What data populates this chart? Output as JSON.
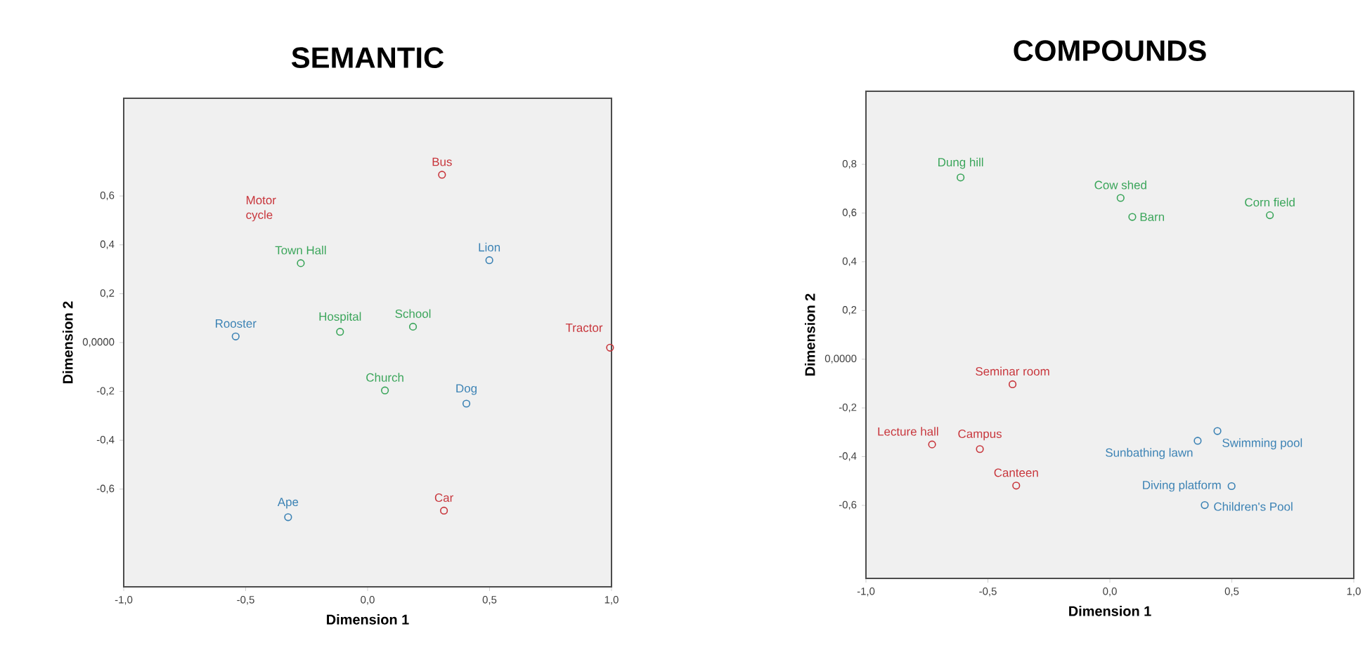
{
  "chart_data": [
    {
      "type": "scatter",
      "title": "SEMANTIC",
      "xlabel": "Dimension 1",
      "ylabel": "Dimension 2",
      "marker": "circle",
      "grid": false,
      "legend": false,
      "xlim": [
        -1,
        1
      ],
      "ylim": [
        -1,
        1
      ],
      "xticks": [
        {
          "value": -1,
          "label": "-1,0"
        },
        {
          "value": -0.5,
          "label": "-0,5"
        },
        {
          "value": 0,
          "label": "0,0"
        },
        {
          "value": 0.5,
          "label": "0,5"
        },
        {
          "value": 1,
          "label": "1,0"
        }
      ],
      "yticks": [
        {
          "value": -0.6,
          "label": "-0,6"
        },
        {
          "value": -0.4,
          "label": "-0,4"
        },
        {
          "value": -0.2,
          "label": "-0,2"
        },
        {
          "value": 0,
          "label": "0,0000"
        },
        {
          "value": 0.2,
          "label": "0,2"
        },
        {
          "value": 0.4,
          "label": "0,4"
        },
        {
          "value": 0.6,
          "label": "0,6"
        }
      ],
      "annotations": [
        "Motor cycle"
      ],
      "series": [
        {
          "name": "Bus",
          "color": "#c8363c",
          "x": [
            0.305
          ],
          "values": [
            0.687
          ]
        },
        {
          "name": "Town Hall",
          "color": "#3aa55a",
          "x": [
            -0.274
          ],
          "values": [
            0.325
          ]
        },
        {
          "name": "Lion",
          "color": "#3b82b4",
          "x": [
            0.499
          ],
          "values": [
            0.337
          ]
        },
        {
          "name": "Rooster",
          "color": "#3b82b4",
          "x": [
            -0.541
          ],
          "values": [
            0.025
          ]
        },
        {
          "name": "Hospital",
          "color": "#3aa55a",
          "x": [
            -0.113
          ],
          "values": [
            0.044
          ]
        },
        {
          "name": "School",
          "color": "#3aa55a",
          "x": [
            0.186
          ],
          "values": [
            0.065
          ]
        },
        {
          "name": "Tractor",
          "color": "#c8363c",
          "x": [
            0.994
          ],
          "values": [
            -0.021
          ]
        },
        {
          "name": "Church",
          "color": "#3aa55a",
          "x": [
            0.071
          ],
          "values": [
            -0.196
          ]
        },
        {
          "name": "Dog",
          "color": "#3b82b4",
          "x": [
            0.405
          ],
          "values": [
            -0.25
          ]
        },
        {
          "name": "Ape",
          "color": "#3b82b4",
          "x": [
            -0.326
          ],
          "values": [
            -0.715
          ]
        },
        {
          "name": "Car",
          "color": "#c8363c",
          "x": [
            0.313
          ],
          "values": [
            -0.688
          ]
        }
      ]
    },
    {
      "type": "scatter",
      "title": "COMPOUNDS",
      "xlabel": "Dimension 1",
      "ylabel": "Dimension 2",
      "marker": "circle",
      "grid": false,
      "legend": false,
      "xlim": [
        -1,
        1
      ],
      "ylim": [
        -0.9,
        1.1
      ],
      "xticks": [
        {
          "value": -1,
          "label": "-1,0"
        },
        {
          "value": -0.5,
          "label": "-0,5"
        },
        {
          "value": 0,
          "label": "0,0"
        },
        {
          "value": 0.5,
          "label": "0,5"
        },
        {
          "value": 1,
          "label": "1,0"
        }
      ],
      "yticks": [
        {
          "value": -0.6,
          "label": "-0,6"
        },
        {
          "value": -0.4,
          "label": "-0,4"
        },
        {
          "value": -0.2,
          "label": "-0,2"
        },
        {
          "value": 0,
          "label": "0,0000"
        },
        {
          "value": 0.2,
          "label": "0,2"
        },
        {
          "value": 0.4,
          "label": "0,4"
        },
        {
          "value": 0.6,
          "label": "0,6"
        },
        {
          "value": 0.8,
          "label": "0,8"
        }
      ],
      "series": [
        {
          "name": "Dung hill",
          "color": "#3aa55a",
          "x": [
            -0.612
          ],
          "values": [
            0.746
          ]
        },
        {
          "name": "Cow shed",
          "color": "#3aa55a",
          "x": [
            0.044
          ],
          "values": [
            0.662
          ]
        },
        {
          "name": "Barn",
          "color": "#3aa55a",
          "x": [
            0.092
          ],
          "values": [
            0.584
          ]
        },
        {
          "name": "Corn field",
          "color": "#3aa55a",
          "x": [
            0.656
          ],
          "values": [
            0.591
          ]
        },
        {
          "name": "Seminar room",
          "color": "#c8363c",
          "x": [
            -0.399
          ],
          "values": [
            -0.103
          ]
        },
        {
          "name": "Lecture hall",
          "color": "#c8363c",
          "x": [
            -0.729
          ],
          "values": [
            -0.35
          ]
        },
        {
          "name": "Campus",
          "color": "#c8363c",
          "x": [
            -0.533
          ],
          "values": [
            -0.369
          ]
        },
        {
          "name": "Canteen",
          "color": "#c8363c",
          "x": [
            -0.384
          ],
          "values": [
            -0.519
          ]
        },
        {
          "name": "Sunbathing lawn",
          "color": "#3b82b4",
          "x": [
            0.36
          ],
          "values": [
            -0.335
          ]
        },
        {
          "name": "Swimming pool",
          "color": "#3b82b4",
          "x": [
            0.441
          ],
          "values": [
            -0.295
          ]
        },
        {
          "name": "Diving platform",
          "color": "#3b82b4",
          "x": [
            0.499
          ],
          "values": [
            -0.521
          ]
        },
        {
          "name": "Children's Pool",
          "color": "#3b82b4",
          "x": [
            0.389
          ],
          "values": [
            -0.599
          ]
        }
      ]
    }
  ]
}
